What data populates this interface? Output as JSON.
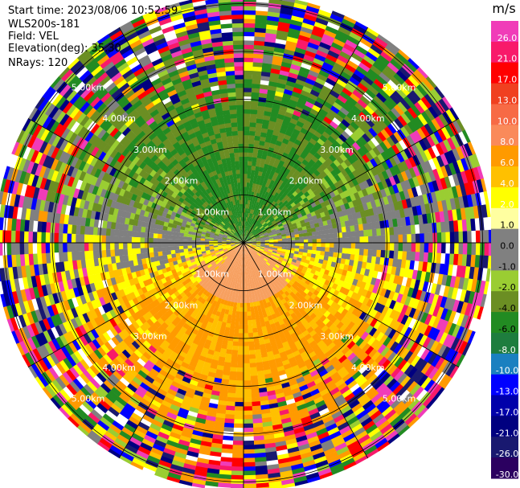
{
  "header": {
    "start_time": "Start time: 2023/08/06 10:52:59",
    "instrument": "WLS200s-181",
    "field": "Field: VEL",
    "elevation": "Elevation(deg): 35.30",
    "nrays": "NRays: 120"
  },
  "range_rings": {
    "labels": [
      "1.00km",
      "2.00km",
      "3.00km",
      "4.00km",
      "5.00km"
    ],
    "km": [
      1,
      2,
      3,
      4,
      5
    ],
    "max_km": 5.2
  },
  "colorbar": {
    "unit": "m/s",
    "ticks": [
      "26.0",
      "21.0",
      "17.0",
      "13.0",
      "10.0",
      "8.0",
      "6.0",
      "4.0",
      "2.0",
      "1.0",
      "0.0",
      "-1.0",
      "-2.0",
      "-4.0",
      "-6.0",
      "-8.0",
      "-10.0",
      "-13.0",
      "-17.0",
      "-21.0",
      "-26.0",
      "-30.0"
    ],
    "colors": [
      "#f03cb8",
      "#f81a6a",
      "#ff0000",
      "#f04020",
      "#f76a45",
      "#fa8a5a",
      "#ff9a00",
      "#ffc000",
      "#ffff00",
      "#ffffa0",
      "#808080",
      "#808080",
      "#9acd32",
      "#6b8e23",
      "#228b22",
      "#1e7d3e",
      "#1a80c0",
      "#0000ff",
      "#0000aa",
      "#000080",
      "#191970",
      "#2b0060"
    ]
  },
  "palette": {
    "toward": [
      "#9acd32",
      "#6b8e23",
      "#228b22"
    ],
    "away": [
      "#ffff00",
      "#ffc000",
      "#ff9a00",
      "#f7a060"
    ],
    "zero": "#808080",
    "noise": [
      "#f03cb8",
      "#ff0000",
      "#0000ff",
      "#000080",
      "#ffff00",
      "#228b22",
      "#ff9a00",
      "#ffffff",
      "#808080",
      "#191970",
      "#9acd32",
      "#f81a6a"
    ]
  }
}
